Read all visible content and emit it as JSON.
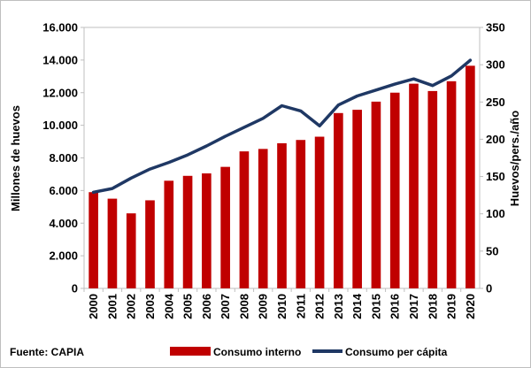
{
  "chart_data": {
    "type": "bar+line",
    "categories": [
      "2000",
      "2001",
      "2002",
      "2003",
      "2004",
      "2005",
      "2006",
      "2007",
      "2008",
      "2009",
      "2010",
      "2011",
      "2012",
      "2013",
      "2014",
      "2015",
      "2016",
      "2017",
      "2018",
      "2019",
      "2020"
    ],
    "series": [
      {
        "name": "Consumo interno",
        "type": "bar",
        "axis": "left",
        "color": "#c00000",
        "values": [
          5900,
          5500,
          4600,
          5400,
          6600,
          6900,
          7050,
          7450,
          8400,
          8550,
          8900,
          9100,
          9300,
          10750,
          10950,
          11450,
          12000,
          12550,
          12100,
          12700,
          13650
        ]
      },
      {
        "name": "Consumo per cápita",
        "type": "line",
        "axis": "right",
        "color": "#1f3864",
        "values": [
          129,
          134,
          148,
          160,
          169,
          179,
          191,
          204,
          216,
          228,
          245,
          238,
          218,
          246,
          258,
          266,
          274,
          281,
          272,
          285,
          306
        ]
      }
    ],
    "y_left": {
      "label": "Millones de huevos",
      "lim": [
        0,
        16000
      ],
      "ticks": [
        0,
        2000,
        4000,
        6000,
        8000,
        10000,
        12000,
        14000,
        16000
      ],
      "tick_labels": [
        "0",
        "2.000",
        "4.000",
        "6.000",
        "8.000",
        "10.000",
        "12.000",
        "14.000",
        "16.000"
      ]
    },
    "y_right": {
      "label": "Huevos/pers./año",
      "lim": [
        0,
        350
      ],
      "ticks": [
        0,
        50,
        100,
        150,
        200,
        250,
        300,
        350
      ],
      "tick_labels": [
        "0",
        "50",
        "100",
        "150",
        "200",
        "250",
        "300",
        "350"
      ]
    },
    "grid": false,
    "legend_position": "bottom",
    "source": "Fuente: CAPIA"
  }
}
